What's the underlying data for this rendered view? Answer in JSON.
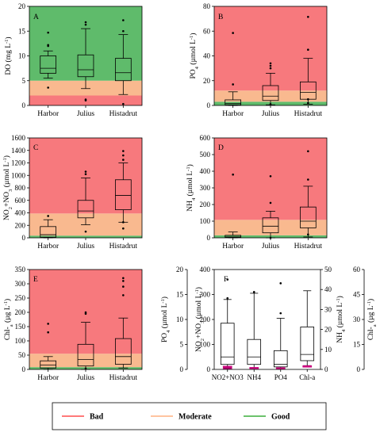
{
  "colors": {
    "bad": "#f7797d",
    "moderate": "#f9b98f",
    "good": "#5fbb6b",
    "box": "#000000"
  },
  "legend": [
    {
      "label": "Bad",
      "color": "#ff4d4d"
    },
    {
      "label": "Moderate",
      "color": "#ffb080"
    },
    {
      "label": "Good",
      "color": "#3cae3c"
    }
  ],
  "chart_data": [
    {
      "type": "box",
      "panel": "A",
      "categories": [
        "Harbor",
        "Julius",
        "Histadrut"
      ],
      "ylabel_parts": [
        "DO (mg L",
        "-1",
        ")"
      ],
      "ylim": [
        0,
        20
      ],
      "yticks": [
        "0",
        "5",
        "10",
        "15",
        "20"
      ],
      "bands": [
        {
          "from": 0,
          "to": 2,
          "zone": "bad"
        },
        {
          "from": 2,
          "to": 5,
          "zone": "moderate"
        },
        {
          "from": 5,
          "to": 20,
          "zone": "good"
        }
      ],
      "boxes": [
        {
          "whislo": 5.5,
          "q1": 6.5,
          "med": 7.5,
          "q3": 10.0,
          "whishi": 11.0,
          "fliers": [
            3.6,
            12.0,
            12.2,
            14.7
          ]
        },
        {
          "whislo": 3.4,
          "q1": 5.8,
          "med": 7.2,
          "q3": 10.2,
          "whishi": 15.5,
          "fliers": [
            1.2,
            1.0,
            16.3,
            16.8
          ]
        },
        {
          "whislo": 2.2,
          "q1": 5.0,
          "med": 6.6,
          "q3": 9.5,
          "whishi": 14.3,
          "fliers": [
            0.3,
            15.0,
            17.2
          ]
        }
      ]
    },
    {
      "type": "box",
      "panel": "B",
      "categories": [
        "Harbor",
        "Julius",
        "Histadrut"
      ],
      "ylabel_parts": [
        "PO",
        "4",
        " (µmol L",
        "-1",
        ")"
      ],
      "ylim": [
        0,
        80
      ],
      "yticks": [
        "0",
        "20",
        "40",
        "60",
        "80"
      ],
      "bands": [
        {
          "from": 0,
          "to": 3,
          "zone": "good"
        },
        {
          "from": 3,
          "to": 12,
          "zone": "moderate"
        },
        {
          "from": 12,
          "to": 80,
          "zone": "bad"
        }
      ],
      "boxes": [
        {
          "whislo": 0,
          "q1": 0.5,
          "med": 1.5,
          "q3": 4.5,
          "whishi": 11.0,
          "fliers": [
            17.0,
            58.5
          ]
        },
        {
          "whislo": 0.5,
          "q1": 4.0,
          "med": 7.5,
          "q3": 16.0,
          "whishi": 26.0,
          "fliers": [
            1.0,
            30.0,
            32.0,
            34.0
          ]
        },
        {
          "whislo": 1.0,
          "q1": 5.0,
          "med": 10.5,
          "q3": 19.0,
          "whishi": 38.0,
          "fliers": [
            2.0,
            5.0,
            45.0,
            71.5
          ]
        }
      ]
    },
    {
      "type": "box",
      "panel": "C",
      "categories": [
        "Harbor",
        "Julius",
        "Histadrut"
      ],
      "ylabel_parts": [
        "NO",
        "2",
        "+NO",
        "3",
        " (µmol L",
        "-1",
        ")"
      ],
      "ylim": [
        0,
        1600
      ],
      "yticks": [
        "0",
        "200",
        "400",
        "600",
        "800",
        "1000",
        "1200",
        "1400",
        "1600"
      ],
      "bands": [
        {
          "from": 0,
          "to": 35,
          "zone": "good"
        },
        {
          "from": 35,
          "to": 390,
          "zone": "moderate"
        },
        {
          "from": 390,
          "to": 1600,
          "zone": "bad"
        }
      ],
      "boxes": [
        {
          "whislo": 0,
          "q1": 10,
          "med": 50,
          "q3": 180,
          "whishi": 290,
          "fliers": [
            350
          ]
        },
        {
          "whislo": 210,
          "q1": 320,
          "med": 430,
          "q3": 600,
          "whishi": 960,
          "fliers": [
            100,
            1020,
            1060
          ]
        },
        {
          "whislo": 250,
          "q1": 450,
          "med": 680,
          "q3": 930,
          "whishi": 1200,
          "fliers": [
            150,
            250,
            1250,
            1320,
            1390
          ]
        }
      ]
    },
    {
      "type": "box",
      "panel": "D",
      "categories": [
        "Harbor",
        "Julius",
        "Histadrut"
      ],
      "ylabel_parts": [
        "NH",
        "4",
        " (µmol L",
        "-1",
        ")"
      ],
      "ylim": [
        0,
        600
      ],
      "yticks": [
        "0",
        "100",
        "200",
        "300",
        "400",
        "500",
        "600"
      ],
      "bands": [
        {
          "from": 0,
          "to": 15,
          "zone": "good"
        },
        {
          "from": 15,
          "to": 108,
          "zone": "moderate"
        },
        {
          "from": 108,
          "to": 600,
          "zone": "bad"
        }
      ],
      "boxes": [
        {
          "whislo": 0,
          "q1": 2,
          "med": 5,
          "q3": 15,
          "whishi": 35,
          "fliers": [
            380
          ]
        },
        {
          "whislo": 0,
          "q1": 30,
          "med": 70,
          "q3": 120,
          "whishi": 160,
          "fliers": [
            0,
            210,
            370
          ]
        },
        {
          "whislo": 5,
          "q1": 60,
          "med": 100,
          "q3": 185,
          "whishi": 310,
          "fliers": [
            20,
            350,
            520
          ]
        }
      ]
    },
    {
      "type": "box",
      "panel": "E",
      "categories": [
        "Harbor",
        "Julius",
        "Histadrut"
      ],
      "ylabel_parts": [
        "Chl-",
        "a",
        " (µg L",
        "-1",
        ")"
      ],
      "ylim": [
        0,
        350
      ],
      "yticks": [
        "0",
        "50",
        "100",
        "150",
        "200",
        "250",
        "300",
        "350"
      ],
      "bands": [
        {
          "from": 0,
          "to": 8,
          "zone": "good"
        },
        {
          "from": 8,
          "to": 55,
          "zone": "moderate"
        },
        {
          "from": 55,
          "to": 350,
          "zone": "bad"
        }
      ],
      "boxes": [
        {
          "whislo": 0,
          "q1": 5,
          "med": 15,
          "q3": 30,
          "whishi": 45,
          "fliers": [
            130,
            160
          ]
        },
        {
          "whislo": 0,
          "q1": 12,
          "med": 35,
          "q3": 88,
          "whishi": 165,
          "fliers": [
            3,
            195,
            200
          ]
        },
        {
          "whislo": 5,
          "q1": 18,
          "med": 45,
          "q3": 108,
          "whishi": 180,
          "fliers": [
            260,
            290,
            310,
            320
          ]
        }
      ]
    },
    {
      "type": "box",
      "panel": "F",
      "categories": [
        "NO2+NO3",
        "NH4",
        "PO4",
        "Chl-a"
      ],
      "ylabel_outer_parts": [
        "PO",
        "4",
        " (µmol L",
        "-1",
        ")"
      ],
      "ylabel_parts": [
        "NO",
        "2",
        "+NO",
        "3",
        " (µmol L",
        "-1",
        ")"
      ],
      "ylabel_right_parts": [
        "NH",
        "4",
        " (µmol L",
        "-1",
        ")"
      ],
      "ylabel_right2_parts": [
        "Chl-",
        "a",
        " (µg L",
        "-1",
        ")"
      ],
      "ylim": [
        0,
        400
      ],
      "yticks": [
        "0",
        "100",
        "200",
        "300",
        "400"
      ],
      "outer_ylim": [
        0,
        20
      ],
      "outer_yticks": [
        "0",
        "5",
        "10",
        "15",
        "20"
      ],
      "right_ylim": [
        0,
        50
      ],
      "right_yticks": [
        "0",
        "10",
        "20",
        "30",
        "40",
        "50"
      ],
      "right2_ylim": [
        0,
        60
      ],
      "right2_yticks": [
        "0",
        "15",
        "30",
        "45",
        "60"
      ],
      "boxes": [
        {
          "whislo": 5,
          "q1": 20,
          "med": 50,
          "q3": 185,
          "whishi": 280,
          "fliers": [
            10,
            285,
            360
          ]
        },
        {
          "whislo": 5,
          "q1": 20,
          "med": 50,
          "q3": 120,
          "whishi": 305,
          "fliers": [
            310
          ]
        },
        {
          "whislo": 5,
          "q1": 10,
          "med": 20,
          "q3": 75,
          "whishi": 205,
          "fliers": [
            225,
            345
          ]
        },
        {
          "whislo": 15,
          "q1": 35,
          "med": 60,
          "q3": 170,
          "whishi": 315,
          "fliers": []
        }
      ],
      "low_marks": [
        {
          "category": "NO2+NO3",
          "values": [
            3,
            8,
            12
          ]
        },
        {
          "category": "NH4",
          "values": [
            4,
            7
          ]
        },
        {
          "category": "PO4",
          "values": [
            3,
            6
          ]
        },
        {
          "category": "Chl-a",
          "values": [
            10,
            14
          ]
        }
      ],
      "low_mark_color": "#c8007a"
    }
  ]
}
